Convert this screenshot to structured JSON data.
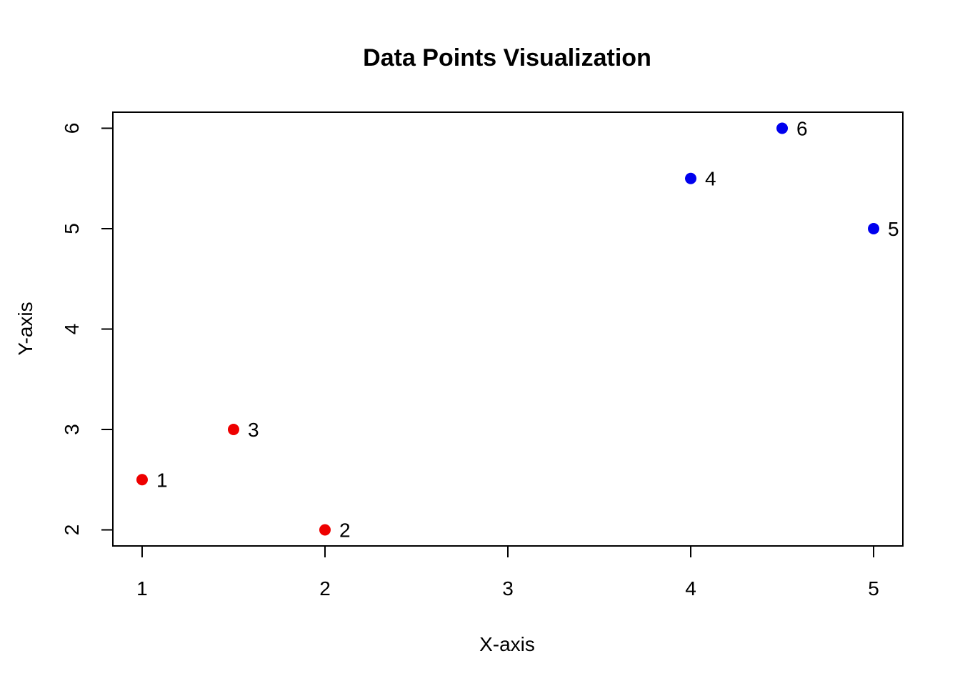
{
  "chart_data": {
    "type": "scatter",
    "title": "Data Points Visualization",
    "xlabel": "X-axis",
    "ylabel": "Y-axis",
    "xlim": [
      0.84,
      5.16
    ],
    "ylim": [
      1.84,
      6.16
    ],
    "x_ticks": [
      1,
      2,
      3,
      4,
      5
    ],
    "y_ticks": [
      2,
      3,
      4,
      5,
      6
    ],
    "grid": false,
    "legend": "none",
    "points": [
      {
        "x": 1.0,
        "y": 2.5,
        "label": "1",
        "color": "#ee0000"
      },
      {
        "x": 2.0,
        "y": 2.0,
        "label": "2",
        "color": "#ee0000"
      },
      {
        "x": 1.5,
        "y": 3.0,
        "label": "3",
        "color": "#ee0000"
      },
      {
        "x": 4.0,
        "y": 5.5,
        "label": "4",
        "color": "#0000ee"
      },
      {
        "x": 5.0,
        "y": 5.0,
        "label": "5",
        "color": "#0000ee"
      },
      {
        "x": 4.5,
        "y": 6.0,
        "label": "6",
        "color": "#0000ee"
      }
    ]
  }
}
